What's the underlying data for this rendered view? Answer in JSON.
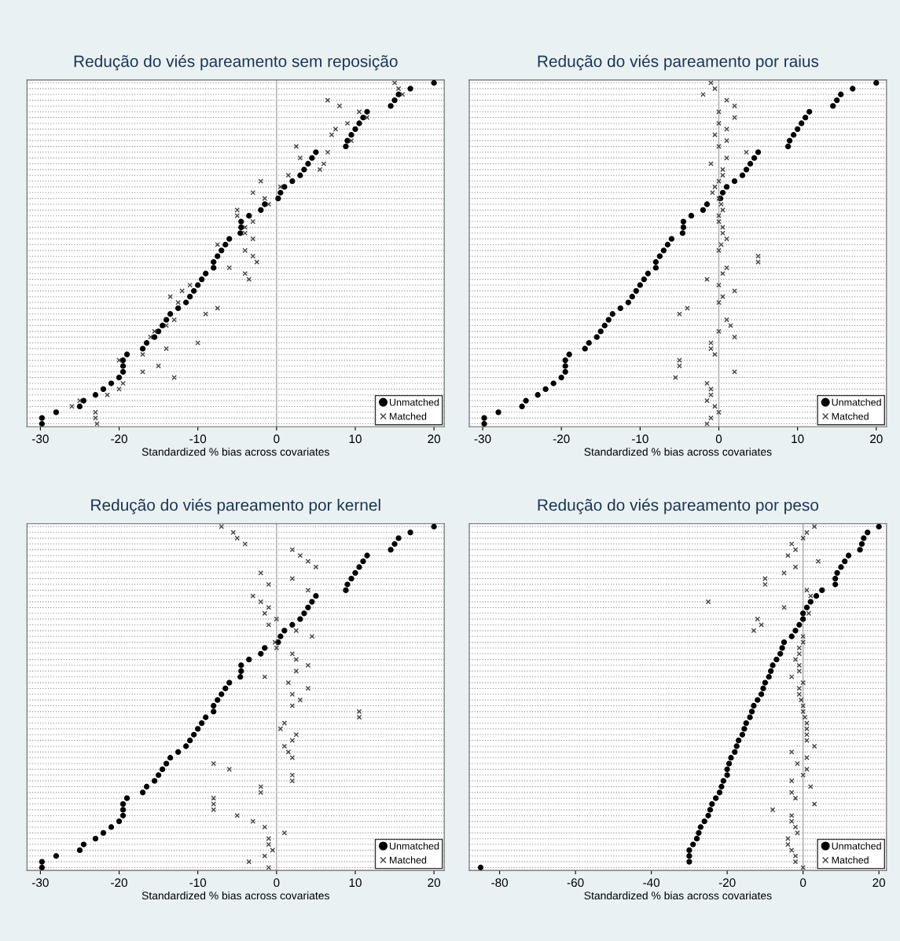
{
  "chart_data": [
    {
      "type": "scatter",
      "orientation": "horizontal",
      "title": "Redução do viés pareamento sem reposição",
      "xlabel": "Standardized % bias across covariates",
      "categories": [
        null,
        null,
        null,
        null,
        null,
        null,
        null,
        null,
        null,
        null,
        null,
        null,
        null,
        null,
        null,
        null,
        null,
        null,
        null,
        null,
        null,
        null,
        null,
        null,
        null,
        null,
        null,
        null,
        null,
        null,
        null,
        null,
        null,
        null,
        null,
        null,
        null,
        null,
        null,
        null,
        null,
        null,
        null,
        null,
        null,
        null,
        null,
        null,
        null,
        null,
        null,
        null,
        null,
        null,
        null,
        null,
        null,
        null,
        null,
        null
      ],
      "xlim": [
        -31.7,
        21.3
      ],
      "xticks": [
        -30,
        -20,
        -10,
        0,
        10,
        20
      ],
      "grid": "y",
      "legend": "bottom right",
      "tick_labels": "x",
      "ref_lines": [
        {
          "axis": "x",
          "value": 0,
          "color": "#aaaaaa"
        }
      ],
      "series": [
        {
          "name": "Unmatched",
          "color": "#000000",
          "marker": "circle",
          "values": [
            20,
            17,
            15.5,
            15,
            14.5,
            11.5,
            11,
            10.5,
            10,
            9.5,
            9,
            8.8,
            5,
            4.5,
            4,
            3.5,
            3,
            2,
            1,
            0.5,
            0.2,
            -1.5,
            -2,
            -3.5,
            -4.5,
            -4.5,
            -4.6,
            -6,
            -6.5,
            -7,
            -7.5,
            -8,
            -8,
            -9,
            -9.5,
            -10,
            -10.5,
            -11,
            -11.5,
            -12.5,
            -13.5,
            -14,
            -14.5,
            -15,
            -15.5,
            -16.5,
            -17,
            -19,
            -19.5,
            -19.5,
            -19.5,
            -20,
            -21,
            -22,
            -23,
            -24.5,
            -25,
            -28,
            -29.8,
            -29.8
          ]
        },
        {
          "name": "Matched",
          "color": "#444444",
          "marker": "cross",
          "values": [
            15,
            15.5,
            16,
            6.5,
            8,
            10.5,
            11.5,
            9,
            7.5,
            7,
            9.5,
            2.5,
            6.5,
            3,
            6,
            5.5,
            1.5,
            -2,
            0.5,
            -3,
            -1.5,
            -1,
            -5,
            -5,
            -3,
            -4,
            -4,
            -3,
            -7.5,
            -4,
            -3,
            -2.5,
            -6,
            -4,
            -3.5,
            -11,
            -12,
            -13.5,
            -12.5,
            -7.5,
            -9,
            -13,
            -14,
            -15.5,
            -16,
            -10,
            -14,
            -17,
            -20,
            -15,
            -17,
            -13,
            -19.5,
            -20,
            -21.5,
            -25,
            -26,
            -23,
            -23,
            -22.8
          ]
        }
      ]
    },
    {
      "type": "scatter",
      "orientation": "horizontal",
      "title": "Redução do viés pareamento por raius",
      "xlabel": "Standardized % bias across covariates",
      "categories": [
        null,
        null,
        null,
        null,
        null,
        null,
        null,
        null,
        null,
        null,
        null,
        null,
        null,
        null,
        null,
        null,
        null,
        null,
        null,
        null,
        null,
        null,
        null,
        null,
        null,
        null,
        null,
        null,
        null,
        null,
        null,
        null,
        null,
        null,
        null,
        null,
        null,
        null,
        null,
        null,
        null,
        null,
        null,
        null,
        null,
        null,
        null,
        null,
        null,
        null,
        null,
        null,
        null,
        null,
        null,
        null,
        null,
        null,
        null,
        null
      ],
      "xlim": [
        -31.7,
        21.3
      ],
      "xticks": [
        -30,
        -20,
        -10,
        0,
        10,
        20
      ],
      "grid": "y",
      "legend": "bottom right",
      "tick_labels": "x",
      "ref_lines": [
        {
          "axis": "x",
          "value": 0,
          "color": "#aaaaaa"
        }
      ],
      "series": [
        {
          "name": "Unmatched",
          "color": "#000000",
          "marker": "circle",
          "values": [
            20,
            17,
            15.5,
            15,
            14.5,
            11.5,
            11,
            10.5,
            10,
            9.5,
            9,
            8.8,
            5,
            4.5,
            4,
            3.5,
            3,
            2,
            1,
            0.5,
            0.2,
            -1.5,
            -2,
            -3.5,
            -4.5,
            -4.5,
            -4.6,
            -6,
            -6.5,
            -7,
            -7.5,
            -8,
            -8,
            -9,
            -9.5,
            -10,
            -10.5,
            -11,
            -11.5,
            -12.5,
            -13.5,
            -14,
            -14.5,
            -15,
            -15.5,
            -16.5,
            -17,
            -19,
            -19.5,
            -19.5,
            -19.5,
            -20,
            -21,
            -22,
            -23,
            -24.5,
            -25,
            -28,
            -29.8,
            -29.8
          ]
        },
        {
          "name": "Matched",
          "color": "#444444",
          "marker": "cross",
          "values": [
            -1,
            -0.5,
            -2,
            1,
            2,
            0,
            2,
            0,
            1,
            -0.5,
            1,
            0,
            3.5,
            1,
            -1,
            0.5,
            0.5,
            0,
            -0.5,
            -0.8,
            0,
            0.3,
            0.5,
            0,
            0,
            0.5,
            0.5,
            1,
            0.3,
            0,
            5,
            5,
            1,
            0.5,
            -1.5,
            0,
            2,
            0.5,
            0,
            -4,
            -5,
            1,
            1.5,
            0,
            2,
            -1,
            -1,
            -0.5,
            -5,
            -5,
            2,
            -5.5,
            -1.5,
            -1,
            -1,
            -1.5,
            -0.5,
            0,
            -1,
            -1.5
          ]
        }
      ]
    },
    {
      "type": "scatter",
      "orientation": "horizontal",
      "title": "Redução do viés pareamento por kernel",
      "xlabel": "Standardized % bias across covariates",
      "categories": [
        null,
        null,
        null,
        null,
        null,
        null,
        null,
        null,
        null,
        null,
        null,
        null,
        null,
        null,
        null,
        null,
        null,
        null,
        null,
        null,
        null,
        null,
        null,
        null,
        null,
        null,
        null,
        null,
        null,
        null,
        null,
        null,
        null,
        null,
        null,
        null,
        null,
        null,
        null,
        null,
        null,
        null,
        null,
        null,
        null,
        null,
        null,
        null,
        null,
        null,
        null,
        null,
        null,
        null,
        null,
        null,
        null,
        null,
        null,
        null
      ],
      "xlim": [
        -31.7,
        21.3
      ],
      "xticks": [
        -30,
        -20,
        -10,
        0,
        10,
        20
      ],
      "grid": "y",
      "legend": "bottom right",
      "tick_labels": "x",
      "ref_lines": [
        {
          "axis": "x",
          "value": 0,
          "color": "#aaaaaa"
        }
      ],
      "series": [
        {
          "name": "Unmatched",
          "color": "#000000",
          "marker": "circle",
          "values": [
            20,
            17,
            15.5,
            15,
            14.5,
            11.5,
            11,
            10.5,
            10,
            9.5,
            9,
            8.8,
            5,
            4.5,
            4,
            3.5,
            3,
            2,
            1,
            0.5,
            0.2,
            -1.5,
            -2,
            -3.5,
            -4.5,
            -4.5,
            -4.6,
            -6,
            -6.5,
            -7,
            -7.5,
            -8,
            -8,
            -9,
            -9.5,
            -10,
            -10.5,
            -11,
            -11.5,
            -12.5,
            -13.5,
            -14,
            -14.5,
            -15,
            -15.5,
            -16.5,
            -17,
            -19,
            -19.5,
            -19.5,
            -19.5,
            -20,
            -21,
            -22,
            -23,
            -24.5,
            -25,
            -28,
            -29.8,
            -29.8
          ]
        },
        {
          "name": "Matched",
          "color": "#444444",
          "marker": "cross",
          "values": [
            -7,
            -5.5,
            -5,
            -4,
            2,
            3,
            4,
            5,
            -2,
            2,
            -1,
            4,
            -3,
            -2,
            -1,
            -1.5,
            0,
            -1,
            2.5,
            4.5,
            -0.2,
            0,
            2,
            2.5,
            4,
            2.5,
            -1.5,
            1.5,
            4,
            2,
            3,
            2,
            10.5,
            10.5,
            1,
            0.5,
            2.5,
            2,
            1,
            1.5,
            2,
            -8,
            -6,
            2,
            2,
            -2,
            -2,
            -8,
            -8,
            -8,
            -5,
            -3,
            -1.5,
            1,
            -1,
            -1,
            -0.5,
            -1.5,
            -3.5,
            -1
          ]
        }
      ]
    },
    {
      "type": "scatter",
      "orientation": "horizontal",
      "title": "Redução do viés pareamento por peso",
      "xlabel": "Standardized % bias across covariates",
      "categories": [
        null,
        null,
        null,
        null,
        null,
        null,
        null,
        null,
        null,
        null,
        null,
        null,
        null,
        null,
        null,
        null,
        null,
        null,
        null,
        null,
        null,
        null,
        null,
        null,
        null,
        null,
        null,
        null,
        null,
        null,
        null,
        null,
        null,
        null,
        null,
        null,
        null,
        null,
        null,
        null,
        null,
        null,
        null,
        null,
        null,
        null,
        null,
        null,
        null,
        null,
        null,
        null,
        null,
        null,
        null,
        null,
        null,
        null,
        null,
        null
      ],
      "xlim": [
        -88,
        22
      ],
      "xticks": [
        -80,
        -60,
        -40,
        -20,
        0,
        20
      ],
      "grid": "y",
      "legend": "bottom right",
      "tick_labels": "x",
      "ref_lines": [
        {
          "axis": "x",
          "value": 0,
          "color": "#aaaaaa"
        }
      ],
      "series": [
        {
          "name": "Unmatched",
          "color": "#000000",
          "marker": "circle",
          "values": [
            20,
            17,
            16,
            15.5,
            15,
            12,
            11,
            10,
            9,
            8.5,
            8.5,
            5,
            3.5,
            2,
            1,
            0,
            0,
            -1,
            -2,
            -3,
            -5,
            -5.5,
            -6,
            -7,
            -8,
            -8.5,
            -9,
            -10,
            -10.5,
            -11,
            -12,
            -13,
            -13.5,
            -14,
            -15,
            -15.5,
            -16,
            -17,
            -17.5,
            -18,
            -19,
            -19.5,
            -20,
            -20,
            -21,
            -21.5,
            -22,
            -23,
            -24,
            -24.5,
            -25,
            -26,
            -27,
            -27.5,
            -28,
            -29,
            -30,
            -30,
            -30,
            -85
          ]
        },
        {
          "name": "Matched",
          "color": "#444444",
          "marker": "cross",
          "values": [
            3,
            1,
            0,
            -3,
            -2,
            -4,
            4,
            -2,
            -5,
            -10,
            -10,
            1,
            2,
            -25,
            -5,
            1.5,
            -12,
            -11,
            -13,
            0,
            0,
            -1,
            -1,
            -2,
            -1,
            -1,
            -3,
            0,
            -1,
            -1,
            -0.5,
            0,
            0,
            0.5,
            1,
            1,
            1,
            1,
            3,
            -3,
            1,
            -1.5,
            1,
            0,
            -3,
            2,
            -3,
            -2,
            3,
            -8,
            -3,
            -3,
            -2,
            -1.5,
            -4,
            -4,
            -3,
            -2,
            -2,
            0
          ]
        }
      ]
    }
  ]
}
